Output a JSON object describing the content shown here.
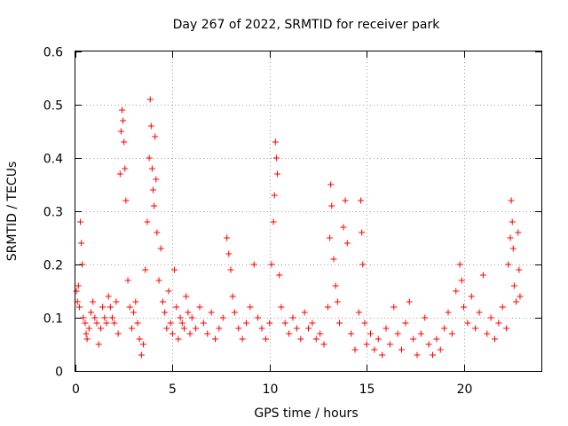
{
  "chart_data": {
    "type": "scatter",
    "title": "Day 267 of 2022, SRMTID for receiver park",
    "xlabel": "GPS time / hours",
    "ylabel": "SRMTID / TECUs",
    "xlim": [
      0,
      24
    ],
    "ylim": [
      0,
      0.6
    ],
    "xticks": [
      0,
      5,
      10,
      15,
      20
    ],
    "yticks": [
      0,
      0.1,
      0.2,
      0.3,
      0.4,
      0.5,
      0.6
    ],
    "xtick_labels": [
      "0",
      "5",
      "10",
      "15",
      "20"
    ],
    "ytick_labels": [
      "0",
      "0.1",
      "0.2",
      "0.3",
      "0.4",
      "0.5",
      "0.6"
    ],
    "grid": true,
    "marker": "+",
    "color": "#ff0000",
    "series": [
      {
        "name": "SRMTID",
        "points": [
          [
            0.05,
            0.15
          ],
          [
            0.1,
            0.13
          ],
          [
            0.15,
            0.16
          ],
          [
            0.2,
            0.12
          ],
          [
            0.25,
            0.28
          ],
          [
            0.3,
            0.24
          ],
          [
            0.35,
            0.2
          ],
          [
            0.4,
            0.1
          ],
          [
            0.5,
            0.09
          ],
          [
            0.55,
            0.07
          ],
          [
            0.6,
            0.06
          ],
          [
            0.7,
            0.08
          ],
          [
            0.8,
            0.11
          ],
          [
            0.9,
            0.13
          ],
          [
            1.0,
            0.1
          ],
          [
            1.1,
            0.09
          ],
          [
            1.2,
            0.05
          ],
          [
            1.3,
            0.08
          ],
          [
            1.4,
            0.12
          ],
          [
            1.5,
            0.1
          ],
          [
            1.6,
            0.09
          ],
          [
            1.7,
            0.14
          ],
          [
            1.8,
            0.12
          ],
          [
            1.9,
            0.1
          ],
          [
            2.0,
            0.09
          ],
          [
            2.1,
            0.13
          ],
          [
            2.2,
            0.07
          ],
          [
            2.3,
            0.37
          ],
          [
            2.35,
            0.45
          ],
          [
            2.4,
            0.49
          ],
          [
            2.45,
            0.47
          ],
          [
            2.5,
            0.43
          ],
          [
            2.55,
            0.38
          ],
          [
            2.6,
            0.32
          ],
          [
            2.7,
            0.17
          ],
          [
            2.8,
            0.12
          ],
          [
            2.9,
            0.08
          ],
          [
            3.0,
            0.11
          ],
          [
            3.1,
            0.13
          ],
          [
            3.2,
            0.09
          ],
          [
            3.3,
            0.06
          ],
          [
            3.4,
            0.03
          ],
          [
            3.5,
            0.05
          ],
          [
            3.6,
            0.19
          ],
          [
            3.7,
            0.28
          ],
          [
            3.8,
            0.4
          ],
          [
            3.85,
            0.51
          ],
          [
            3.9,
            0.46
          ],
          [
            3.95,
            0.38
          ],
          [
            4.0,
            0.34
          ],
          [
            4.05,
            0.31
          ],
          [
            4.1,
            0.44
          ],
          [
            4.15,
            0.36
          ],
          [
            4.2,
            0.26
          ],
          [
            4.3,
            0.17
          ],
          [
            4.4,
            0.23
          ],
          [
            4.5,
            0.13
          ],
          [
            4.6,
            0.11
          ],
          [
            4.7,
            0.08
          ],
          [
            4.8,
            0.15
          ],
          [
            4.9,
            0.09
          ],
          [
            5.0,
            0.07
          ],
          [
            5.1,
            0.19
          ],
          [
            5.2,
            0.12
          ],
          [
            5.3,
            0.06
          ],
          [
            5.4,
            0.1
          ],
          [
            5.5,
            0.09
          ],
          [
            5.6,
            0.08
          ],
          [
            5.7,
            0.14
          ],
          [
            5.8,
            0.11
          ],
          [
            5.9,
            0.07
          ],
          [
            6.0,
            0.1
          ],
          [
            6.2,
            0.08
          ],
          [
            6.4,
            0.12
          ],
          [
            6.6,
            0.09
          ],
          [
            6.8,
            0.07
          ],
          [
            7.0,
            0.11
          ],
          [
            7.2,
            0.06
          ],
          [
            7.4,
            0.08
          ],
          [
            7.6,
            0.1
          ],
          [
            7.8,
            0.25
          ],
          [
            7.9,
            0.22
          ],
          [
            8.0,
            0.19
          ],
          [
            8.1,
            0.14
          ],
          [
            8.2,
            0.11
          ],
          [
            8.4,
            0.08
          ],
          [
            8.6,
            0.06
          ],
          [
            8.8,
            0.09
          ],
          [
            9.0,
            0.12
          ],
          [
            9.2,
            0.2
          ],
          [
            9.4,
            0.1
          ],
          [
            9.6,
            0.08
          ],
          [
            9.8,
            0.06
          ],
          [
            10.0,
            0.09
          ],
          [
            10.1,
            0.2
          ],
          [
            10.2,
            0.28
          ],
          [
            10.25,
            0.33
          ],
          [
            10.3,
            0.43
          ],
          [
            10.35,
            0.4
          ],
          [
            10.4,
            0.37
          ],
          [
            10.5,
            0.18
          ],
          [
            10.6,
            0.12
          ],
          [
            10.8,
            0.09
          ],
          [
            11.0,
            0.07
          ],
          [
            11.2,
            0.1
          ],
          [
            11.4,
            0.08
          ],
          [
            11.6,
            0.06
          ],
          [
            11.8,
            0.11
          ],
          [
            12.0,
            0.08
          ],
          [
            12.2,
            0.09
          ],
          [
            12.4,
            0.06
          ],
          [
            12.6,
            0.07
          ],
          [
            12.8,
            0.05
          ],
          [
            13.0,
            0.12
          ],
          [
            13.1,
            0.25
          ],
          [
            13.15,
            0.35
          ],
          [
            13.2,
            0.31
          ],
          [
            13.3,
            0.21
          ],
          [
            13.4,
            0.16
          ],
          [
            13.5,
            0.13
          ],
          [
            13.6,
            0.09
          ],
          [
            13.8,
            0.27
          ],
          [
            13.9,
            0.32
          ],
          [
            14.0,
            0.24
          ],
          [
            14.2,
            0.07
          ],
          [
            14.4,
            0.04
          ],
          [
            14.6,
            0.11
          ],
          [
            14.7,
            0.32
          ],
          [
            14.75,
            0.26
          ],
          [
            14.8,
            0.2
          ],
          [
            14.9,
            0.09
          ],
          [
            15.0,
            0.05
          ],
          [
            15.2,
            0.07
          ],
          [
            15.4,
            0.04
          ],
          [
            15.6,
            0.06
          ],
          [
            15.8,
            0.03
          ],
          [
            16.0,
            0.08
          ],
          [
            16.2,
            0.05
          ],
          [
            16.4,
            0.12
          ],
          [
            16.6,
            0.07
          ],
          [
            16.8,
            0.04
          ],
          [
            17.0,
            0.09
          ],
          [
            17.2,
            0.13
          ],
          [
            17.4,
            0.06
          ],
          [
            17.6,
            0.03
          ],
          [
            17.8,
            0.07
          ],
          [
            18.0,
            0.1
          ],
          [
            18.2,
            0.05
          ],
          [
            18.4,
            0.03
          ],
          [
            18.6,
            0.06
          ],
          [
            18.8,
            0.04
          ],
          [
            19.0,
            0.08
          ],
          [
            19.2,
            0.11
          ],
          [
            19.4,
            0.07
          ],
          [
            19.6,
            0.15
          ],
          [
            19.8,
            0.2
          ],
          [
            19.9,
            0.17
          ],
          [
            20.0,
            0.12
          ],
          [
            20.2,
            0.09
          ],
          [
            20.4,
            0.14
          ],
          [
            20.6,
            0.08
          ],
          [
            20.8,
            0.11
          ],
          [
            21.0,
            0.18
          ],
          [
            21.2,
            0.07
          ],
          [
            21.4,
            0.1
          ],
          [
            21.6,
            0.06
          ],
          [
            21.8,
            0.09
          ],
          [
            22.0,
            0.12
          ],
          [
            22.2,
            0.08
          ],
          [
            22.3,
            0.2
          ],
          [
            22.4,
            0.25
          ],
          [
            22.45,
            0.32
          ],
          [
            22.5,
            0.28
          ],
          [
            22.55,
            0.23
          ],
          [
            22.6,
            0.16
          ],
          [
            22.7,
            0.13
          ],
          [
            22.8,
            0.26
          ],
          [
            22.85,
            0.19
          ],
          [
            22.9,
            0.14
          ]
        ]
      }
    ]
  }
}
